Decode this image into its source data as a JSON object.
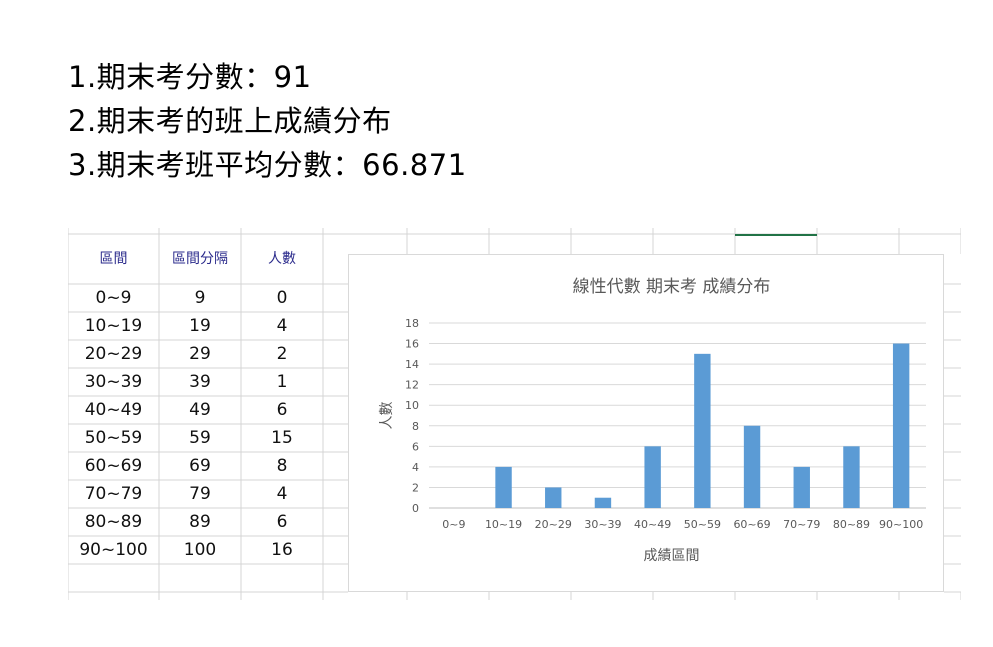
{
  "info_lines": [
    "1.期末考分數：91",
    "2.期末考的班上成績分布",
    "3.期末考班平均分數：66.871"
  ],
  "table": {
    "headers": [
      "區間",
      "區間分隔",
      "人數"
    ],
    "rows": [
      {
        "range": "0~9",
        "bound": "9",
        "count": "0"
      },
      {
        "range": "10~19",
        "bound": "19",
        "count": "4"
      },
      {
        "range": "20~29",
        "bound": "29",
        "count": "2"
      },
      {
        "range": "30~39",
        "bound": "39",
        "count": "1"
      },
      {
        "range": "40~49",
        "bound": "49",
        "count": "6"
      },
      {
        "range": "50~59",
        "bound": "59",
        "count": "15"
      },
      {
        "range": "60~69",
        "bound": "69",
        "count": "8"
      },
      {
        "range": "70~79",
        "bound": "79",
        "count": "4"
      },
      {
        "range": "80~89",
        "bound": "89",
        "count": "6"
      },
      {
        "range": "90~100",
        "bound": "100",
        "count": "16"
      }
    ]
  },
  "chart_data": {
    "type": "bar",
    "title": "線性代數 期末考 成績分布",
    "xlabel": "成績區間",
    "ylabel": "人數",
    "categories": [
      "0~9",
      "10~19",
      "20~29",
      "30~39",
      "40~49",
      "50~59",
      "60~69",
      "70~79",
      "80~89",
      "90~100"
    ],
    "values": [
      0,
      4,
      2,
      1,
      6,
      15,
      8,
      4,
      6,
      16
    ],
    "ylim": [
      0,
      18
    ],
    "yticks": [
      0,
      2,
      4,
      6,
      8,
      10,
      12,
      14,
      16,
      18
    ],
    "grid": true,
    "legend": "none",
    "bar_color": "#5b9bd5"
  },
  "colors": {
    "header_text": "#2b2b8c",
    "grid_line": "#d4d4d4",
    "selected_cell_border": "#217346"
  }
}
